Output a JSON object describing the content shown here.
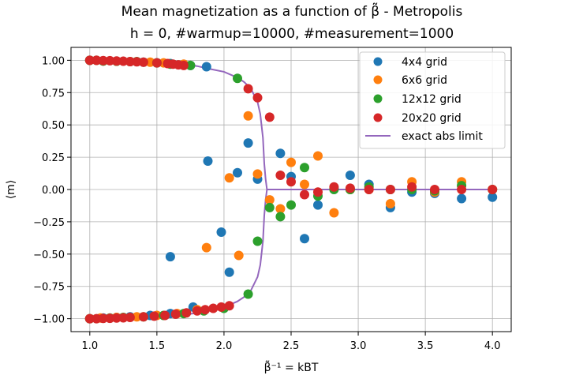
{
  "chart_data": {
    "type": "scatter",
    "title": "Mean magnetization as a function of β̃ - Metropolis",
    "subtitle": "h = 0, #warmup=10000, #measurement=1000",
    "xlabel": "β̃⁻¹ = kBT",
    "ylabel": "⟨m⟩",
    "xlim": [
      0.86,
      4.14
    ],
    "ylim": [
      -1.1,
      1.1
    ],
    "xticks": [
      "1.0",
      "1.5",
      "2.0",
      "2.5",
      "3.0",
      "3.5",
      "4.0"
    ],
    "yticks": [
      "−1.00",
      "−0.75",
      "−0.50",
      "−0.25",
      "0.00",
      "0.25",
      "0.50",
      "0.75",
      "1.00"
    ],
    "grid": true,
    "legend_position": "top-right",
    "series": [
      {
        "name": "4x4 grid",
        "color": "#1f77b4",
        "kind": "scatter",
        "points": [
          [
            1.0,
            1.0
          ],
          [
            1.05,
            1.0
          ],
          [
            1.1,
            0.995
          ],
          [
            1.2,
            0.993
          ],
          [
            1.3,
            0.99
          ],
          [
            1.4,
            0.985
          ],
          [
            1.5,
            0.98
          ],
          [
            1.6,
            0.975
          ],
          [
            1.75,
            0.96
          ],
          [
            1.87,
            0.95
          ],
          [
            1.0,
            -1.0
          ],
          [
            1.1,
            -0.995
          ],
          [
            1.2,
            -0.99
          ],
          [
            1.3,
            -0.985
          ],
          [
            1.45,
            -0.975
          ],
          [
            1.6,
            -0.96
          ],
          [
            1.77,
            -0.91
          ],
          [
            1.88,
            0.22
          ],
          [
            1.6,
            -0.52
          ],
          [
            1.98,
            -0.33
          ],
          [
            2.04,
            -0.64
          ],
          [
            2.1,
            0.13
          ],
          [
            2.18,
            0.36
          ],
          [
            2.25,
            0.08
          ],
          [
            2.42,
            0.28
          ],
          [
            2.5,
            0.1
          ],
          [
            2.6,
            -0.38
          ],
          [
            2.7,
            -0.12
          ],
          [
            2.82,
            0.01
          ],
          [
            2.94,
            0.11
          ],
          [
            3.08,
            0.04
          ],
          [
            3.24,
            -0.14
          ],
          [
            3.4,
            -0.02
          ],
          [
            3.57,
            -0.03
          ],
          [
            3.77,
            -0.07
          ],
          [
            4.0,
            -0.06
          ]
        ]
      },
      {
        "name": "6x6 grid",
        "color": "#ff7f0e",
        "kind": "scatter",
        "points": [
          [
            1.0,
            1.0
          ],
          [
            1.05,
            1.0
          ],
          [
            1.1,
            0.995
          ],
          [
            1.2,
            0.993
          ],
          [
            1.3,
            0.99
          ],
          [
            1.45,
            0.985
          ],
          [
            1.55,
            0.98
          ],
          [
            1.7,
            0.97
          ],
          [
            1.0,
            -1.0
          ],
          [
            1.08,
            -0.995
          ],
          [
            1.2,
            -0.99
          ],
          [
            1.35,
            -0.985
          ],
          [
            1.5,
            -0.975
          ],
          [
            1.65,
            -0.96
          ],
          [
            1.8,
            -0.93
          ],
          [
            1.87,
            -0.45
          ],
          [
            2.04,
            0.09
          ],
          [
            2.11,
            -0.51
          ],
          [
            2.18,
            0.57
          ],
          [
            2.25,
            0.12
          ],
          [
            2.34,
            -0.08
          ],
          [
            2.42,
            -0.15
          ],
          [
            2.5,
            0.21
          ],
          [
            2.6,
            0.04
          ],
          [
            2.7,
            0.26
          ],
          [
            2.82,
            -0.18
          ],
          [
            2.94,
            0.0
          ],
          [
            3.08,
            0.0
          ],
          [
            3.24,
            -0.11
          ],
          [
            3.4,
            0.06
          ],
          [
            3.57,
            -0.02
          ],
          [
            3.77,
            0.06
          ],
          [
            4.0,
            0.0
          ]
        ]
      },
      {
        "name": "12x12 grid",
        "color": "#2ca02c",
        "kind": "scatter",
        "points": [
          [
            1.0,
            1.0
          ],
          [
            1.1,
            0.995
          ],
          [
            1.2,
            0.993
          ],
          [
            1.35,
            0.99
          ],
          [
            1.5,
            0.98
          ],
          [
            1.6,
            0.97
          ],
          [
            1.75,
            0.96
          ],
          [
            2.1,
            0.86
          ],
          [
            1.0,
            -1.0
          ],
          [
            1.15,
            -0.995
          ],
          [
            1.25,
            -0.99
          ],
          [
            1.4,
            -0.985
          ],
          [
            1.55,
            -0.975
          ],
          [
            1.7,
            -0.96
          ],
          [
            1.85,
            -0.94
          ],
          [
            2.0,
            -0.92
          ],
          [
            2.18,
            -0.81
          ],
          [
            2.25,
            -0.4
          ],
          [
            2.34,
            -0.14
          ],
          [
            2.42,
            -0.21
          ],
          [
            2.5,
            -0.12
          ],
          [
            2.6,
            0.17
          ],
          [
            2.7,
            -0.05
          ],
          [
            2.82,
            0.0
          ],
          [
            2.94,
            0.0
          ],
          [
            3.08,
            0.02
          ],
          [
            3.24,
            0.0
          ],
          [
            3.4,
            0.0
          ],
          [
            3.57,
            -0.01
          ],
          [
            3.77,
            0.03
          ],
          [
            4.0,
            0.0
          ]
        ]
      },
      {
        "name": "20x20 grid",
        "color": "#d62728",
        "kind": "scatter",
        "points": [
          [
            1.0,
            1.0
          ],
          [
            1.05,
            1.0
          ],
          [
            1.1,
            0.998
          ],
          [
            1.15,
            0.997
          ],
          [
            1.2,
            0.995
          ],
          [
            1.25,
            0.993
          ],
          [
            1.3,
            0.99
          ],
          [
            1.35,
            0.988
          ],
          [
            1.4,
            0.985
          ],
          [
            1.5,
            0.98
          ],
          [
            1.58,
            0.975
          ],
          [
            1.62,
            0.97
          ],
          [
            1.66,
            0.965
          ],
          [
            1.7,
            0.96
          ],
          [
            2.18,
            0.78
          ],
          [
            2.25,
            0.71
          ],
          [
            2.34,
            0.56
          ],
          [
            1.0,
            -1.0
          ],
          [
            1.05,
            -1.0
          ],
          [
            1.1,
            -0.998
          ],
          [
            1.15,
            -0.997
          ],
          [
            1.2,
            -0.995
          ],
          [
            1.25,
            -0.993
          ],
          [
            1.3,
            -0.99
          ],
          [
            1.4,
            -0.985
          ],
          [
            1.48,
            -0.98
          ],
          [
            1.56,
            -0.975
          ],
          [
            1.64,
            -0.965
          ],
          [
            1.72,
            -0.955
          ],
          [
            1.8,
            -0.94
          ],
          [
            1.86,
            -0.93
          ],
          [
            1.92,
            -0.92
          ],
          [
            1.98,
            -0.91
          ],
          [
            2.04,
            -0.9
          ],
          [
            2.42,
            0.11
          ],
          [
            2.5,
            0.06
          ],
          [
            2.6,
            -0.04
          ],
          [
            2.7,
            -0.02
          ],
          [
            2.82,
            0.02
          ],
          [
            2.94,
            0.01
          ],
          [
            3.08,
            0.0
          ],
          [
            3.24,
            0.0
          ],
          [
            3.4,
            0.02
          ],
          [
            3.57,
            0.0
          ],
          [
            3.77,
            0.0
          ],
          [
            4.0,
            0.0
          ]
        ]
      },
      {
        "name": "exact abs limit",
        "color": "#9467bd",
        "kind": "line",
        "points": [
          [
            1.0,
            0.9993
          ],
          [
            1.1,
            0.9987
          ],
          [
            1.2,
            0.9975
          ],
          [
            1.3,
            0.9955
          ],
          [
            1.4,
            0.9925
          ],
          [
            1.5,
            0.9875
          ],
          [
            1.6,
            0.9805
          ],
          [
            1.7,
            0.9705
          ],
          [
            1.8,
            0.955
          ],
          [
            1.9,
            0.932
          ],
          [
            2.0,
            0.9113
          ],
          [
            2.1,
            0.8658
          ],
          [
            2.15,
            0.8316
          ],
          [
            2.2,
            0.7816
          ],
          [
            2.25,
            0.6764
          ],
          [
            2.27,
            0.5849
          ],
          [
            2.29,
            0.4
          ],
          [
            2.3,
            0.2
          ],
          [
            2.31,
            0.08
          ],
          [
            2.32,
            0.0
          ],
          [
            2.33,
            -0.08
          ],
          [
            2.34,
            -0.2
          ],
          [
            2.36,
            -0.4
          ],
          [
            2.38,
            -0.6
          ],
          [
            2.4,
            -0.75
          ],
          [
            2.42,
            -0.83
          ],
          [
            2.45,
            -0.88
          ]
        ]
      }
    ]
  }
}
